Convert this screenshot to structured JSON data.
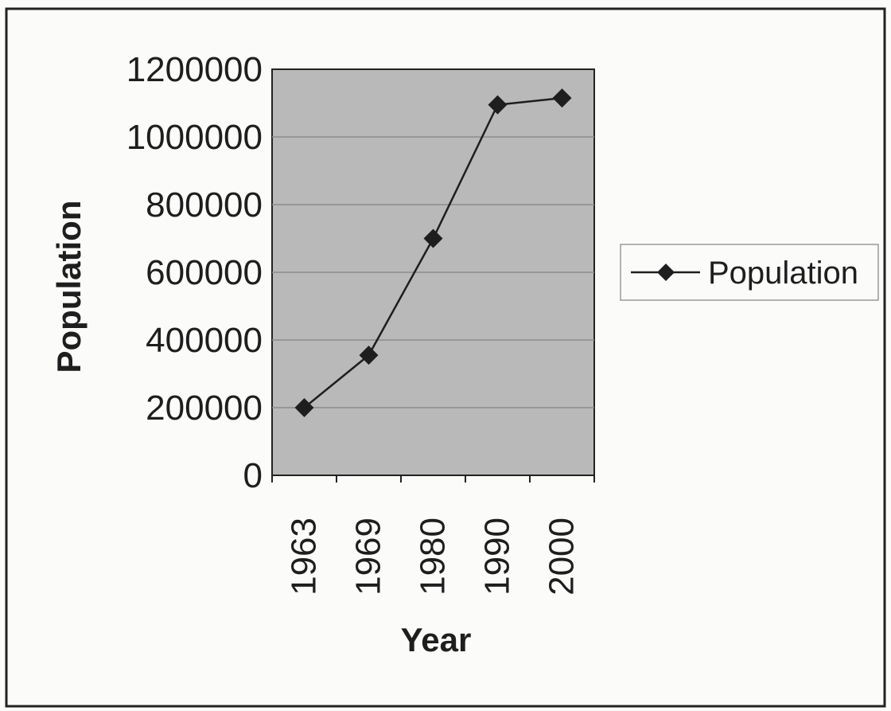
{
  "chart_data": {
    "type": "line",
    "title": "",
    "xlabel": "Year",
    "ylabel": "Population",
    "categories": [
      "1963",
      "1969",
      "1980",
      "1990",
      "2000"
    ],
    "series": [
      {
        "name": "Population",
        "values": [
          200000,
          355000,
          700000,
          1095000,
          1115000
        ],
        "color": "#1e1e1e",
        "marker": "diamond"
      }
    ],
    "ylim": [
      0,
      1200000
    ],
    "yticks": [
      "0",
      "200000",
      "400000",
      "600000",
      "800000",
      "1000000",
      "1200000"
    ],
    "grid": true,
    "legend": "right",
    "colors": {
      "plot_background": "#b9b9b9",
      "frame": "#222222",
      "gridline": "#8c8c8c"
    }
  }
}
